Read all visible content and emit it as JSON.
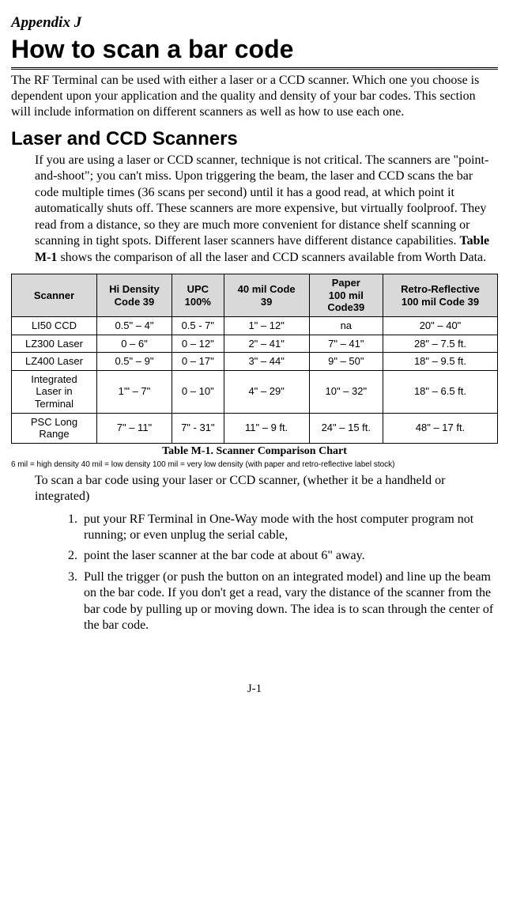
{
  "appendix_label": "Appendix J",
  "title": "How to scan a bar code",
  "intro": "The RF Terminal can be used with either a laser or a CCD scanner. Which one you choose is dependent upon your application and the quality and density of your bar codes.  This section will include information on different scanners as well as how to use each one.",
  "section_h2": "Laser and CCD Scanners",
  "section_para_parts": {
    "p1": "If you are using a laser or CCD scanner, technique is not critical.  The scanners are \"point-and-shoot\"; you can't miss.  Upon triggering the beam, the laser and CCD scans the bar code multiple times (36 scans per second) until it has a good read, at which point it automatically shuts off.  These scanners are more expensive, but virtually foolproof. They read from a distance, so they are much more convenient for distance shelf scanning or scanning in tight spots. Different laser scanners have different distance capabilities. ",
    "bold": "Table M-1",
    "p2": " shows the comparison of all the laser and CCD scanners available from Worth Data."
  },
  "table": {
    "headers": {
      "c0": "Scanner",
      "c1_l1": "Hi Density",
      "c1_l2": "Code 39",
      "c2_l1": "UPC",
      "c2_l2": "100%",
      "c3_l1": "40 mil Code",
      "c3_l2": "39",
      "c4_l1": "Paper",
      "c4_l2": "100 mil",
      "c4_l3": "Code39",
      "c5_l1": "Retro-Reflective",
      "c5_l2": "100 mil Code 39"
    },
    "rows": [
      {
        "c0": "LI50 CCD",
        "c1": "0.5\" – 4\"",
        "c2": "0.5 - 7\"",
        "c3": "1\" – 12\"",
        "c4": "na",
        "c5": "20\" – 40\""
      },
      {
        "c0": "LZ300 Laser",
        "c1": "0 – 6\"",
        "c2": "0 – 12\"",
        "c3": "2\" – 41\"",
        "c4": "7\" – 41\"",
        "c5": "28\" – 7.5 ft."
      },
      {
        "c0": "LZ400 Laser",
        "c1": "0.5\" – 9\"",
        "c2": "0 – 17\"",
        "c3": "3\" – 44\"",
        "c4": "9\" – 50\"",
        "c5": "18\" – 9.5 ft."
      },
      {
        "c0_l1": "Integrated",
        "c0_l2": "Laser in",
        "c0_l3": "Terminal",
        "c1": "1'\" – 7\"",
        "c2": "0 – 10\"",
        "c3": "4\" – 29\"",
        "c4": "10\" – 32\"",
        "c5": "18\" – 6.5 ft."
      },
      {
        "c0_l1": "PSC Long",
        "c0_l2": "Range",
        "c1": "7\" – 11\"",
        "c2": "7\"  - 31\"",
        "c3": "11\" – 9 ft.",
        "c4": "24\" – 15 ft.",
        "c5": "48\" – 17 ft."
      }
    ]
  },
  "caption": "Table M-1. Scanner Comparison Chart",
  "footnote": "6 mil = high density     40 mil = low density   100 mil = very low density (with paper and retro-reflective label stock)",
  "after_table_para": "To scan a bar code using your laser or CCD scanner, (whether it be a handheld or integrated)",
  "steps": {
    "s1": "put your RF Terminal in One-Way mode with the host computer program not running; or even unplug the serial cable,",
    "s2": "point the laser scanner at the bar code at about 6\" away.",
    "s3": "Pull the trigger (or push the button on an integrated model) and line up the beam on the bar code. If you don't get a read, vary the distance of the scanner from the bar code by pulling up or moving down.  The idea is to scan through the center of the bar code."
  },
  "page_num": "J-1"
}
